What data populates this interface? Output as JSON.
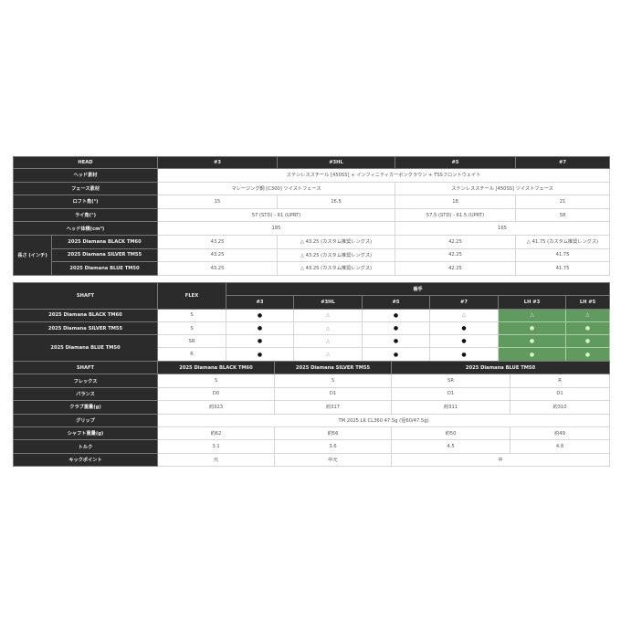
{
  "colors": {
    "header_bg": "#2b2b2b",
    "highlight_green": "#619a5e"
  },
  "head_table": {
    "rows": [
      [
        {
          "t": "HEAD",
          "h": 1,
          "c": 2
        },
        {
          "t": "#3",
          "h": 1
        },
        {
          "t": "#3HL",
          "h": 1
        },
        {
          "t": "#5",
          "h": 1
        },
        {
          "t": "#7",
          "h": 1
        }
      ],
      [
        {
          "t": "ヘッド素材",
          "h": 1,
          "c": 2
        },
        {
          "t": "ステンレススチール [450SS] + インフィニティカーボンクラウン + TSSフロントウェイト",
          "c": 4
        }
      ],
      [
        {
          "t": "フェース素材",
          "h": 1,
          "c": 2
        },
        {
          "t": "マレージング鋼 [C300] ツイストフェース",
          "c": 2
        },
        {
          "t": "ステンレススチール [450SS] ツイストフェース",
          "c": 2
        }
      ],
      [
        {
          "t": "ロフト角(°)",
          "h": 1,
          "c": 2
        },
        {
          "t": "15"
        },
        {
          "t": "16.5"
        },
        {
          "t": "18"
        },
        {
          "t": "21"
        }
      ],
      [
        {
          "t": "ライ角(°)",
          "h": 1,
          "c": 2
        },
        {
          "t": "57 (STD) - 61 (UPRT)",
          "c": 2
        },
        {
          "t": "57.5 (STD) - 61.5 (UPRT)"
        },
        {
          "t": "58"
        }
      ],
      [
        {
          "t": "ヘッド体積(cm³)",
          "h": 1,
          "c": 2
        },
        {
          "t": "185",
          "c": 2
        },
        {
          "t": "165",
          "c": 2
        }
      ],
      [
        {
          "t": "長さ (インチ)",
          "h": 1,
          "r": 3
        },
        {
          "t": "2025 Diamana BLACK TM60",
          "h": 1
        },
        {
          "t": "43.25"
        },
        {
          "t": "△ 43.25 (カスタム推奨レングス)"
        },
        {
          "t": "42.25"
        },
        {
          "t": "△ 41.75 (カスタム推奨レングス)"
        }
      ],
      [
        {
          "t": "2025 Diamana SILVER TM55",
          "h": 1
        },
        {
          "t": "43.25"
        },
        {
          "t": "△ 43.25 (カスタム推奨レングス)"
        },
        {
          "t": "42.25"
        },
        {
          "t": "41.75"
        }
      ],
      [
        {
          "t": "2025 Diamana BLUE TM50",
          "h": 1
        },
        {
          "t": "43.25"
        },
        {
          "t": "△ 43.25 (カスタム推奨レングス)"
        },
        {
          "t": "42.25"
        },
        {
          "t": "41.75"
        }
      ]
    ]
  },
  "shaft_table": {
    "rows": [
      [
        {
          "t": "SHAFT",
          "h": 1,
          "r": 2
        },
        {
          "t": "FLEX",
          "h": 1,
          "r": 2
        },
        {
          "t": "番手",
          "h": 1,
          "c": 6
        }
      ],
      [
        {
          "t": "#3",
          "h": 1
        },
        {
          "t": "#3HL",
          "h": 1
        },
        {
          "t": "#5",
          "h": 1
        },
        {
          "t": "#7",
          "h": 1
        },
        {
          "t": "LH #3",
          "h": 1
        },
        {
          "t": "LH #5",
          "h": 1
        }
      ],
      [
        {
          "t": "2025 Diamana BLACK TM60",
          "h": 1
        },
        {
          "t": "S"
        },
        {
          "t": "●"
        },
        {
          "t": "△"
        },
        {
          "t": "●"
        },
        {
          "t": "△"
        },
        {
          "t": "△",
          "g": 1
        },
        {
          "t": "△",
          "g": 1
        }
      ],
      [
        {
          "t": "2025 Diamana SILVER TM55",
          "h": 1
        },
        {
          "t": "S"
        },
        {
          "t": "●"
        },
        {
          "t": "△"
        },
        {
          "t": "●"
        },
        {
          "t": "●"
        },
        {
          "t": "●",
          "g": 1
        },
        {
          "t": "●",
          "g": 1
        }
      ],
      [
        {
          "t": "2025 Diamana BLUE TM50",
          "h": 1,
          "r": 2
        },
        {
          "t": "SR"
        },
        {
          "t": "●"
        },
        {
          "t": "△"
        },
        {
          "t": "●"
        },
        {
          "t": "●"
        },
        {
          "t": "●",
          "g": 1
        },
        {
          "t": "●",
          "g": 1
        }
      ],
      [
        {
          "t": "R"
        },
        {
          "t": "●"
        },
        {
          "t": "△"
        },
        {
          "t": "●"
        },
        {
          "t": "●"
        },
        {
          "t": "●",
          "g": 1
        },
        {
          "t": "●",
          "g": 1
        }
      ]
    ]
  },
  "spec_table": {
    "rows": [
      [
        {
          "t": "SHAFT",
          "h": 1
        },
        {
          "t": "2025 Diamana BLACK TM60",
          "h": 1
        },
        {
          "t": "2025 Diamana SILVER TM55",
          "h": 1
        },
        {
          "t": "2025 Diamana BLUE TM50",
          "h": 1,
          "c": 2
        }
      ],
      [
        {
          "t": "フレックス",
          "h": 1
        },
        {
          "t": "S"
        },
        {
          "t": "S"
        },
        {
          "t": "SR"
        },
        {
          "t": "R"
        }
      ],
      [
        {
          "t": "バランス",
          "h": 1
        },
        {
          "t": "D0"
        },
        {
          "t": "D1"
        },
        {
          "t": "D1"
        },
        {
          "t": "D1"
        }
      ],
      [
        {
          "t": "クラブ重量(g)",
          "h": 1
        },
        {
          "t": "約323"
        },
        {
          "t": "約317"
        },
        {
          "t": "約311"
        },
        {
          "t": "約310"
        }
      ],
      [
        {
          "t": "グリップ",
          "h": 1
        },
        {
          "t": "TM 2025 LK CL360 47.5g (径60/47.5g)",
          "c": 4
        }
      ],
      [
        {
          "t": "シャフト重量(g)",
          "h": 1
        },
        {
          "t": "約62"
        },
        {
          "t": "約56"
        },
        {
          "t": "約50"
        },
        {
          "t": "約49"
        }
      ],
      [
        {
          "t": "トルク",
          "h": 1
        },
        {
          "t": "3.1"
        },
        {
          "t": "3.6"
        },
        {
          "t": "4.5"
        },
        {
          "t": "4.8"
        }
      ],
      [
        {
          "t": "キックポイント",
          "h": 1
        },
        {
          "t": "元"
        },
        {
          "t": "中元"
        },
        {
          "t": "中",
          "c": 2
        }
      ]
    ]
  }
}
